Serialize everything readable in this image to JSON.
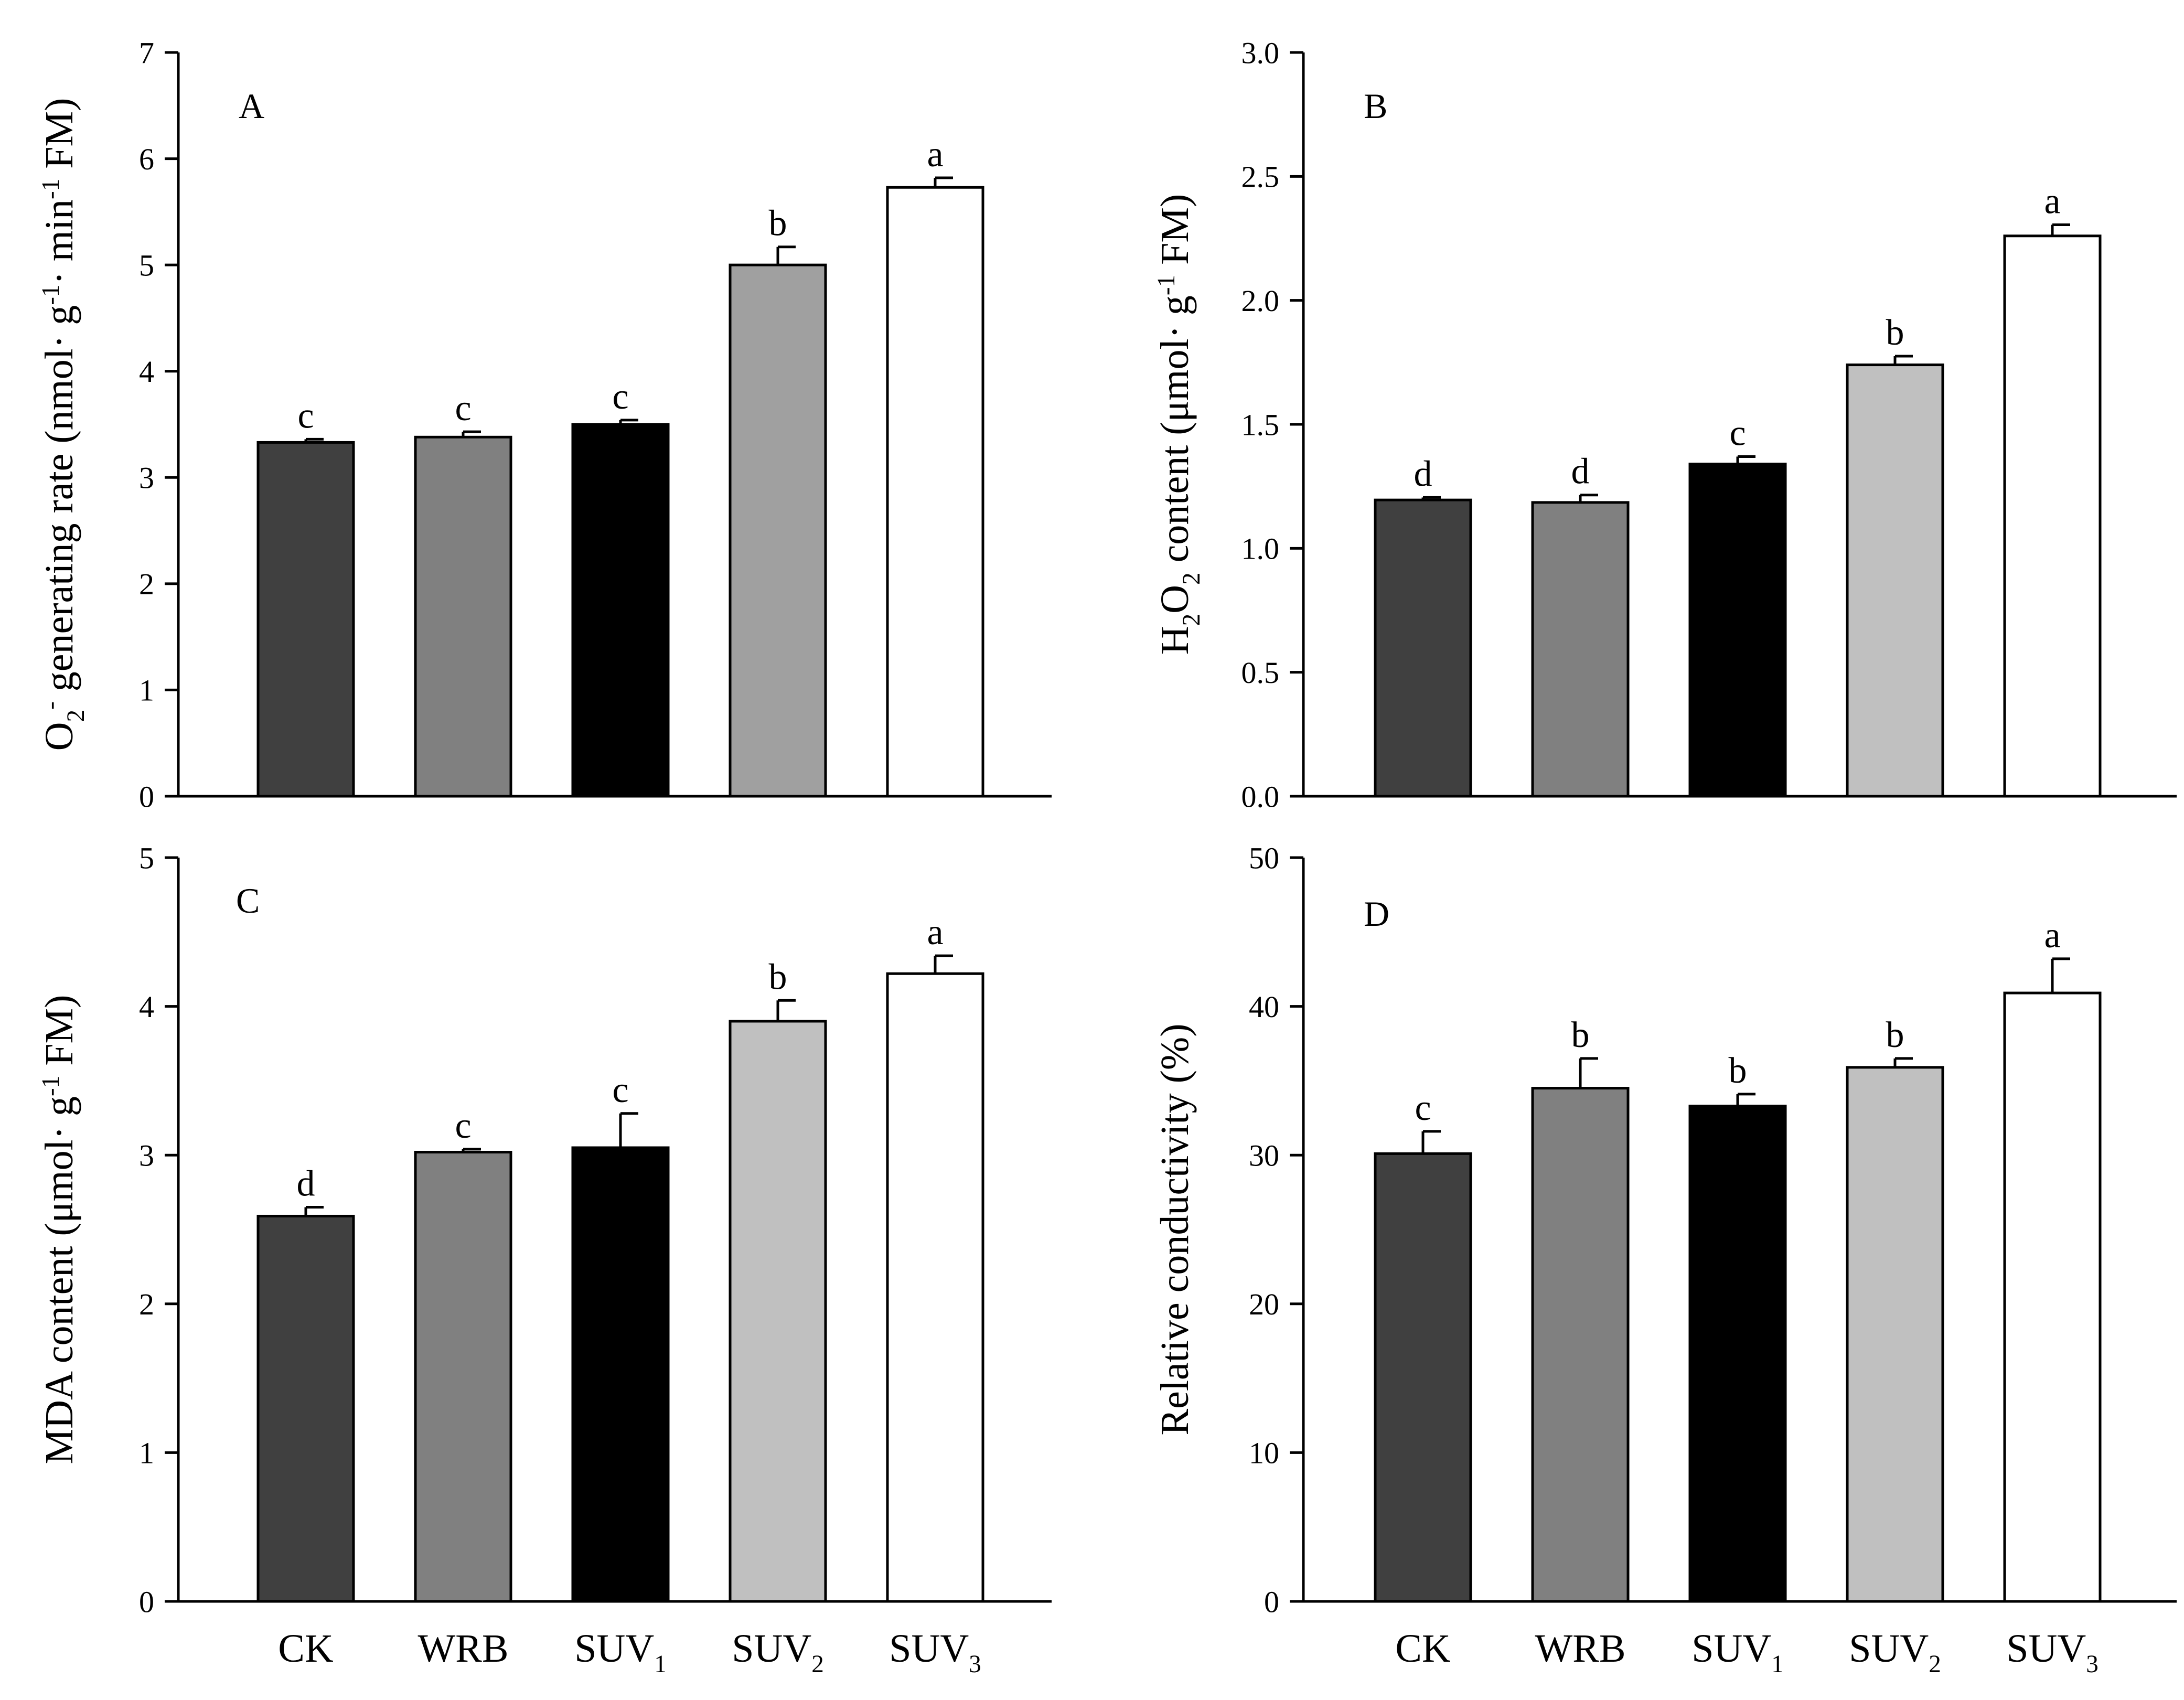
{
  "chart_data": [
    {
      "panel": "A",
      "type": "bar",
      "panel_label": "A",
      "categories": [
        "CK",
        "WRB",
        "SUV1",
        "SUV2",
        "SUV3"
      ],
      "values": [
        3.33,
        3.38,
        3.5,
        5.0,
        5.73
      ],
      "errors": [
        0.03,
        0.05,
        0.04,
        0.17,
        0.09
      ],
      "letters": [
        "c",
        "c",
        "c",
        "b",
        "a"
      ],
      "colors": [
        "#404040",
        "#808080",
        "#000000",
        "#a0a0a0",
        "#ffffff"
      ],
      "ylim": [
        0,
        7
      ],
      "ytick_step": 1,
      "ytick_decimals": 0,
      "ylabel": "O2- generating rate (nmol· g-1· min-1 FM)",
      "xlabel": "",
      "show_xtick_labels": false
    },
    {
      "panel": "B",
      "type": "bar",
      "panel_label": "B",
      "categories": [
        "CK",
        "WRB",
        "SUV1",
        "SUV2",
        "SUV3"
      ],
      "values": [
        1.195,
        1.185,
        1.34,
        1.74,
        2.26
      ],
      "errors": [
        0.01,
        0.03,
        0.03,
        0.035,
        0.045
      ],
      "letters": [
        "d",
        "d",
        "c",
        "b",
        "a"
      ],
      "colors": [
        "#404040",
        "#808080",
        "#000000",
        "#c0c0c0",
        "#ffffff"
      ],
      "ylim": [
        0,
        3.0
      ],
      "ytick_step": 0.5,
      "ytick_decimals": 1,
      "ylabel": "H2O2 content (μmol· g-1 FM)",
      "xlabel": "",
      "show_xtick_labels": false
    },
    {
      "panel": "C",
      "type": "bar",
      "panel_label": "C",
      "categories": [
        "CK",
        "WRB",
        "SUV1",
        "SUV2",
        "SUV3"
      ],
      "values": [
        2.59,
        3.02,
        3.05,
        3.9,
        4.22
      ],
      "errors": [
        0.06,
        0.02,
        0.23,
        0.14,
        0.12
      ],
      "letters": [
        "d",
        "c",
        "c",
        "b",
        "a"
      ],
      "colors": [
        "#404040",
        "#808080",
        "#000000",
        "#c0c0c0",
        "#ffffff"
      ],
      "ylim": [
        0,
        5
      ],
      "ytick_step": 1,
      "ytick_decimals": 0,
      "ylabel": "MDA content (μmol· g-1 FM)",
      "xlabel": "",
      "show_xtick_labels": true
    },
    {
      "panel": "D",
      "type": "bar",
      "panel_label": "D",
      "categories": [
        "CK",
        "WRB",
        "SUV1",
        "SUV2",
        "SUV3"
      ],
      "values": [
        30.1,
        34.5,
        33.3,
        35.9,
        40.9
      ],
      "errors": [
        1.5,
        2.0,
        0.8,
        0.6,
        2.3
      ],
      "letters": [
        "c",
        "b",
        "b",
        "b",
        "a"
      ],
      "colors": [
        "#404040",
        "#808080",
        "#000000",
        "#c0c0c0",
        "#ffffff"
      ],
      "ylim": [
        0,
        50
      ],
      "ytick_step": 10,
      "ytick_decimals": 0,
      "ylabel": "Relative conductivity (%)",
      "xlabel": "",
      "show_xtick_labels": true
    }
  ],
  "category_display": [
    {
      "base": "CK",
      "sub": ""
    },
    {
      "base": "WRB",
      "sub": ""
    },
    {
      "base": "SUV",
      "sub": "1"
    },
    {
      "base": "SUV",
      "sub": "2"
    },
    {
      "base": "SUV",
      "sub": "3"
    }
  ],
  "ylabel_parts": {
    "A": [
      {
        "t": "O",
        "r": "n"
      },
      {
        "t": "2",
        "r": "sub"
      },
      {
        "t": "-",
        "r": "sup"
      },
      {
        "t": " generating rate (nmol· g",
        "r": "n"
      },
      {
        "t": "-1",
        "r": "sup"
      },
      {
        "t": "· min",
        "r": "n"
      },
      {
        "t": "-1",
        "r": "sup"
      },
      {
        "t": " FM)",
        "r": "n"
      }
    ],
    "B": [
      {
        "t": "H",
        "r": "n"
      },
      {
        "t": "2",
        "r": "sub"
      },
      {
        "t": "O",
        "r": "n"
      },
      {
        "t": "2",
        "r": "sub"
      },
      {
        "t": " content (μmol· g",
        "r": "n"
      },
      {
        "t": "-1",
        "r": "sup"
      },
      {
        "t": " FM)",
        "r": "n"
      }
    ],
    "C": [
      {
        "t": "MDA content (μmol· g",
        "r": "n"
      },
      {
        "t": "-1",
        "r": "sup"
      },
      {
        "t": " FM)",
        "r": "n"
      }
    ],
    "D": [
      {
        "t": "Relative conductivity (%)",
        "r": "n"
      }
    ]
  }
}
